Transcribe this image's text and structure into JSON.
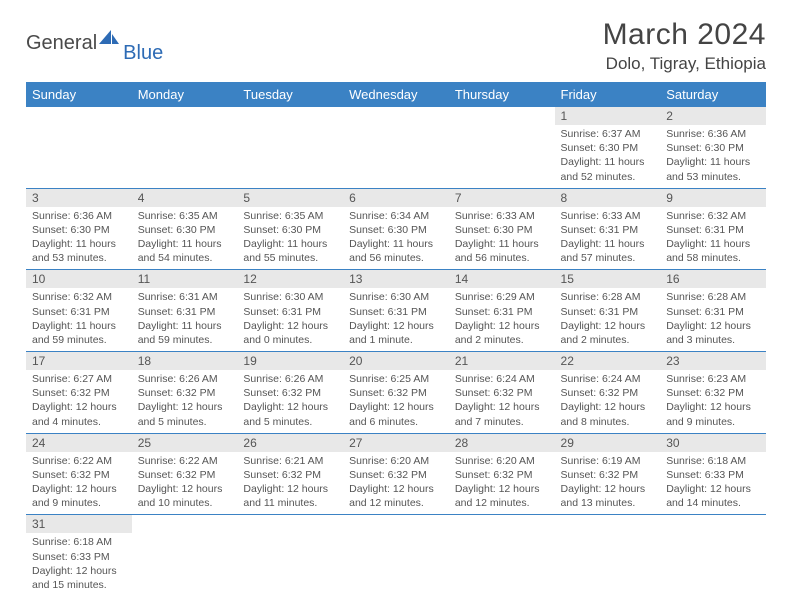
{
  "logo": {
    "general": "General",
    "blue": "Blue"
  },
  "title": "March 2024",
  "location": "Dolo, Tigray, Ethiopia",
  "colors": {
    "header_bg": "#3b82c4",
    "header_text": "#ffffff",
    "daynum_bg": "#e8e8e8",
    "text": "#555555",
    "border": "#3b82c4",
    "logo_blue": "#2d6bb5"
  },
  "daysOfWeek": [
    "Sunday",
    "Monday",
    "Tuesday",
    "Wednesday",
    "Thursday",
    "Friday",
    "Saturday"
  ],
  "firstDayOffset": 5,
  "days": [
    {
      "n": 1,
      "sr": "6:37 AM",
      "ss": "6:30 PM",
      "dl": "11 hours and 52 minutes."
    },
    {
      "n": 2,
      "sr": "6:36 AM",
      "ss": "6:30 PM",
      "dl": "11 hours and 53 minutes."
    },
    {
      "n": 3,
      "sr": "6:36 AM",
      "ss": "6:30 PM",
      "dl": "11 hours and 53 minutes."
    },
    {
      "n": 4,
      "sr": "6:35 AM",
      "ss": "6:30 PM",
      "dl": "11 hours and 54 minutes."
    },
    {
      "n": 5,
      "sr": "6:35 AM",
      "ss": "6:30 PM",
      "dl": "11 hours and 55 minutes."
    },
    {
      "n": 6,
      "sr": "6:34 AM",
      "ss": "6:30 PM",
      "dl": "11 hours and 56 minutes."
    },
    {
      "n": 7,
      "sr": "6:33 AM",
      "ss": "6:30 PM",
      "dl": "11 hours and 56 minutes."
    },
    {
      "n": 8,
      "sr": "6:33 AM",
      "ss": "6:31 PM",
      "dl": "11 hours and 57 minutes."
    },
    {
      "n": 9,
      "sr": "6:32 AM",
      "ss": "6:31 PM",
      "dl": "11 hours and 58 minutes."
    },
    {
      "n": 10,
      "sr": "6:32 AM",
      "ss": "6:31 PM",
      "dl": "11 hours and 59 minutes."
    },
    {
      "n": 11,
      "sr": "6:31 AM",
      "ss": "6:31 PM",
      "dl": "11 hours and 59 minutes."
    },
    {
      "n": 12,
      "sr": "6:30 AM",
      "ss": "6:31 PM",
      "dl": "12 hours and 0 minutes."
    },
    {
      "n": 13,
      "sr": "6:30 AM",
      "ss": "6:31 PM",
      "dl": "12 hours and 1 minute."
    },
    {
      "n": 14,
      "sr": "6:29 AM",
      "ss": "6:31 PM",
      "dl": "12 hours and 2 minutes."
    },
    {
      "n": 15,
      "sr": "6:28 AM",
      "ss": "6:31 PM",
      "dl": "12 hours and 2 minutes."
    },
    {
      "n": 16,
      "sr": "6:28 AM",
      "ss": "6:31 PM",
      "dl": "12 hours and 3 minutes."
    },
    {
      "n": 17,
      "sr": "6:27 AM",
      "ss": "6:32 PM",
      "dl": "12 hours and 4 minutes."
    },
    {
      "n": 18,
      "sr": "6:26 AM",
      "ss": "6:32 PM",
      "dl": "12 hours and 5 minutes."
    },
    {
      "n": 19,
      "sr": "6:26 AM",
      "ss": "6:32 PM",
      "dl": "12 hours and 5 minutes."
    },
    {
      "n": 20,
      "sr": "6:25 AM",
      "ss": "6:32 PM",
      "dl": "12 hours and 6 minutes."
    },
    {
      "n": 21,
      "sr": "6:24 AM",
      "ss": "6:32 PM",
      "dl": "12 hours and 7 minutes."
    },
    {
      "n": 22,
      "sr": "6:24 AM",
      "ss": "6:32 PM",
      "dl": "12 hours and 8 minutes."
    },
    {
      "n": 23,
      "sr": "6:23 AM",
      "ss": "6:32 PM",
      "dl": "12 hours and 9 minutes."
    },
    {
      "n": 24,
      "sr": "6:22 AM",
      "ss": "6:32 PM",
      "dl": "12 hours and 9 minutes."
    },
    {
      "n": 25,
      "sr": "6:22 AM",
      "ss": "6:32 PM",
      "dl": "12 hours and 10 minutes."
    },
    {
      "n": 26,
      "sr": "6:21 AM",
      "ss": "6:32 PM",
      "dl": "12 hours and 11 minutes."
    },
    {
      "n": 27,
      "sr": "6:20 AM",
      "ss": "6:32 PM",
      "dl": "12 hours and 12 minutes."
    },
    {
      "n": 28,
      "sr": "6:20 AM",
      "ss": "6:32 PM",
      "dl": "12 hours and 12 minutes."
    },
    {
      "n": 29,
      "sr": "6:19 AM",
      "ss": "6:32 PM",
      "dl": "12 hours and 13 minutes."
    },
    {
      "n": 30,
      "sr": "6:18 AM",
      "ss": "6:33 PM",
      "dl": "12 hours and 14 minutes."
    },
    {
      "n": 31,
      "sr": "6:18 AM",
      "ss": "6:33 PM",
      "dl": "12 hours and 15 minutes."
    }
  ],
  "labels": {
    "sunrise": "Sunrise:",
    "sunset": "Sunset:",
    "daylight": "Daylight:"
  }
}
